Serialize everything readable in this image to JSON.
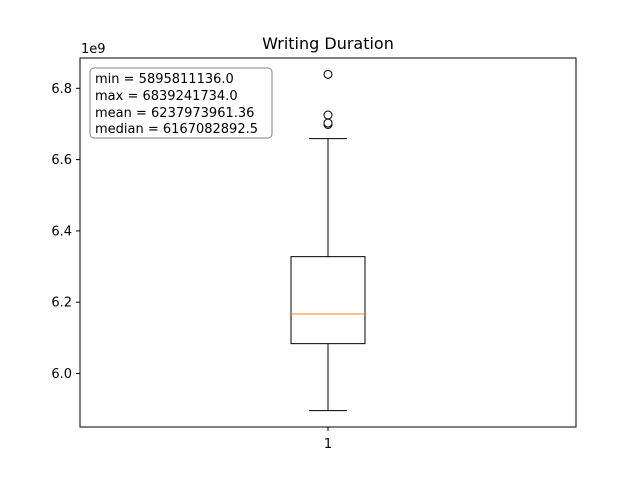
{
  "chart_data": {
    "type": "box",
    "title": "Writing Duration",
    "xlabel": "",
    "ylabel": "",
    "offset_label": "1e9",
    "categories": [
      "1"
    ],
    "ylim": [
      5.85,
      6.885
    ],
    "y_ticks": [
      6.0,
      6.2,
      6.4,
      6.6,
      6.8
    ],
    "y_tick_labels": [
      "6.0",
      "6.2",
      "6.4",
      "6.6",
      "6.8"
    ],
    "box": {
      "whisker_low": 5.8958,
      "q1": 6.0838,
      "median": 6.1671,
      "q3": 6.3278,
      "whisker_high": 6.6587,
      "outliers": [
        6.6985,
        6.7025,
        6.7251,
        6.8392
      ]
    },
    "stats_lines": [
      "min = 5895811136.0",
      "max = 6839241734.0",
      "mean = 6237973961.36",
      "median = 6167082892.5"
    ],
    "grid": false,
    "colors": {
      "box": "#000000",
      "median": "#ff7f0e",
      "outlier_face": "#ffffff",
      "stats_box_edge": "#808080"
    }
  }
}
